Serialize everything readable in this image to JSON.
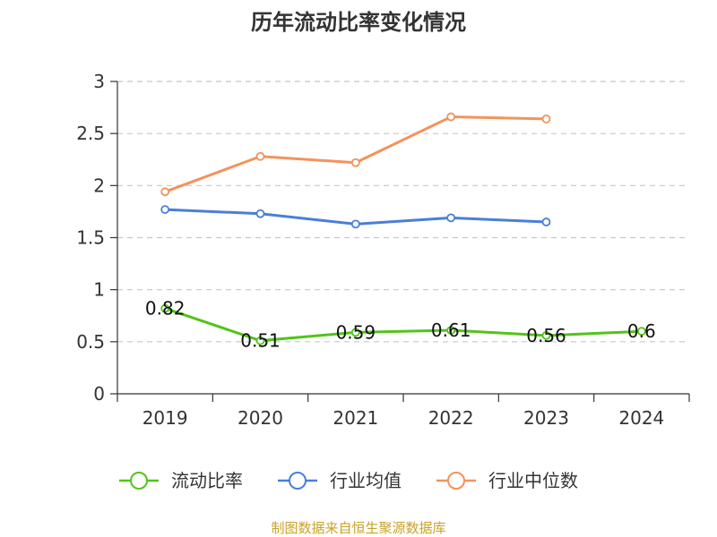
{
  "chart_data": {
    "type": "line",
    "title": "历年流动比率变化情况",
    "categories": [
      "2019",
      "2020",
      "2021",
      "2022",
      "2023",
      "2024"
    ],
    "ylim": [
      0,
      3
    ],
    "yticks": [
      "0",
      "0.5",
      "1",
      "1.5",
      "2",
      "2.5",
      "3"
    ],
    "grid": true,
    "legend_position": "bottom",
    "series": [
      {
        "name": "流动比率",
        "color": "#52c41a",
        "values": [
          0.82,
          0.51,
          0.59,
          0.61,
          0.56,
          0.6
        ],
        "labels": [
          "0.82",
          "0.51",
          "0.59",
          "0.61",
          "0.56",
          "0.6"
        ]
      },
      {
        "name": "行业均值",
        "color": "#4a7fd8",
        "values": [
          1.77,
          1.73,
          1.63,
          1.69,
          1.65,
          null
        ]
      },
      {
        "name": "行业中位数",
        "color": "#f4925c",
        "values": [
          1.94,
          2.28,
          2.22,
          2.66,
          2.64,
          null
        ]
      }
    ]
  },
  "source_text": "制图数据来自恒生聚源数据库"
}
